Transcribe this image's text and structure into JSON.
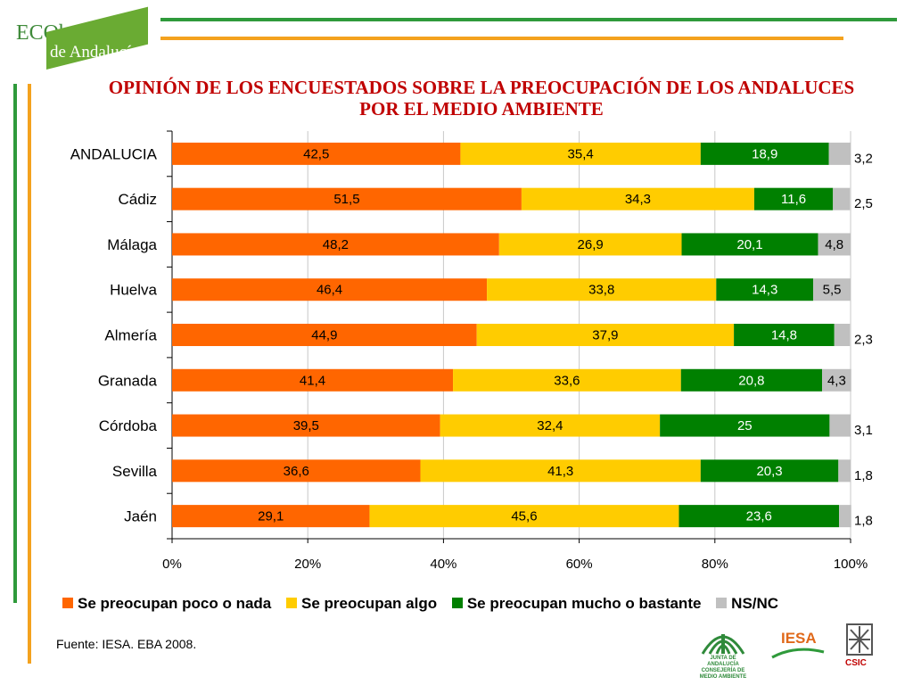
{
  "header": {
    "logo_line1": "ECObarómetro",
    "logo_line2": "de Andalucía"
  },
  "chart_data": {
    "type": "bar",
    "orientation": "horizontal",
    "stacked": "percent",
    "title": "OPINIÓN DE LOS ENCUESTADOS SOBRE LA PREOCUPACIÓN DE LOS ANDALUCES POR EL MEDIO AMBIENTE",
    "categories": [
      "ANDALUCIA",
      "Cádiz",
      "Málaga",
      "Huelva",
      "Almería",
      "Granada",
      "Córdoba",
      "Sevilla",
      "Jaén"
    ],
    "series": [
      {
        "name": "Se preocupan poco o nada",
        "color": "#ff6600",
        "values": [
          42.5,
          51.5,
          48.2,
          46.4,
          44.9,
          41.4,
          39.5,
          36.6,
          29.1
        ],
        "labels": [
          "42,5",
          "51,5",
          "48,2",
          "46,4",
          "44,9",
          "41,4",
          "39,5",
          "36,6",
          "29,1"
        ]
      },
      {
        "name": "Se preocupan algo",
        "color": "#ffcc00",
        "values": [
          35.4,
          34.3,
          26.9,
          33.8,
          37.9,
          33.6,
          32.4,
          41.3,
          45.6
        ],
        "labels": [
          "35,4",
          "34,3",
          "26,9",
          "33,8",
          "37,9",
          "33,6",
          "32,4",
          "41,3",
          "45,6"
        ]
      },
      {
        "name": "Se preocupan mucho o bastante",
        "color": "#008000",
        "values": [
          18.9,
          11.6,
          20.1,
          14.3,
          14.8,
          20.8,
          25,
          20.3,
          23.6
        ],
        "labels": [
          "18,9",
          "11,6",
          "20,1",
          "14,3",
          "14,8",
          "20,8",
          "25",
          "20,3",
          "23,6"
        ]
      },
      {
        "name": "NS/NC",
        "color": "#c0c0c0",
        "values": [
          3.2,
          2.5,
          4.8,
          5.5,
          2.3,
          4.3,
          3.1,
          1.8,
          1.8
        ],
        "labels": [
          "3,2",
          "2,5",
          "4,8",
          "5,5",
          "2,3",
          "4,3",
          "3,1",
          "1,8",
          "1,8"
        ]
      }
    ],
    "xlim": [
      0,
      100
    ],
    "xticks": [
      "0%",
      "20%",
      "40%",
      "60%",
      "80%",
      "100%"
    ],
    "grid": true,
    "legend_position": "bottom"
  },
  "footer": {
    "source": "Fuente: IESA. EBA 2008.",
    "logo_junta": "JUNTA DE ANDALUCÍA",
    "logo_junta_sub": "CONSEJERÍA DE MEDIO AMBIENTE",
    "logo_iesa": "IESA",
    "logo_csic": "CSIC"
  }
}
